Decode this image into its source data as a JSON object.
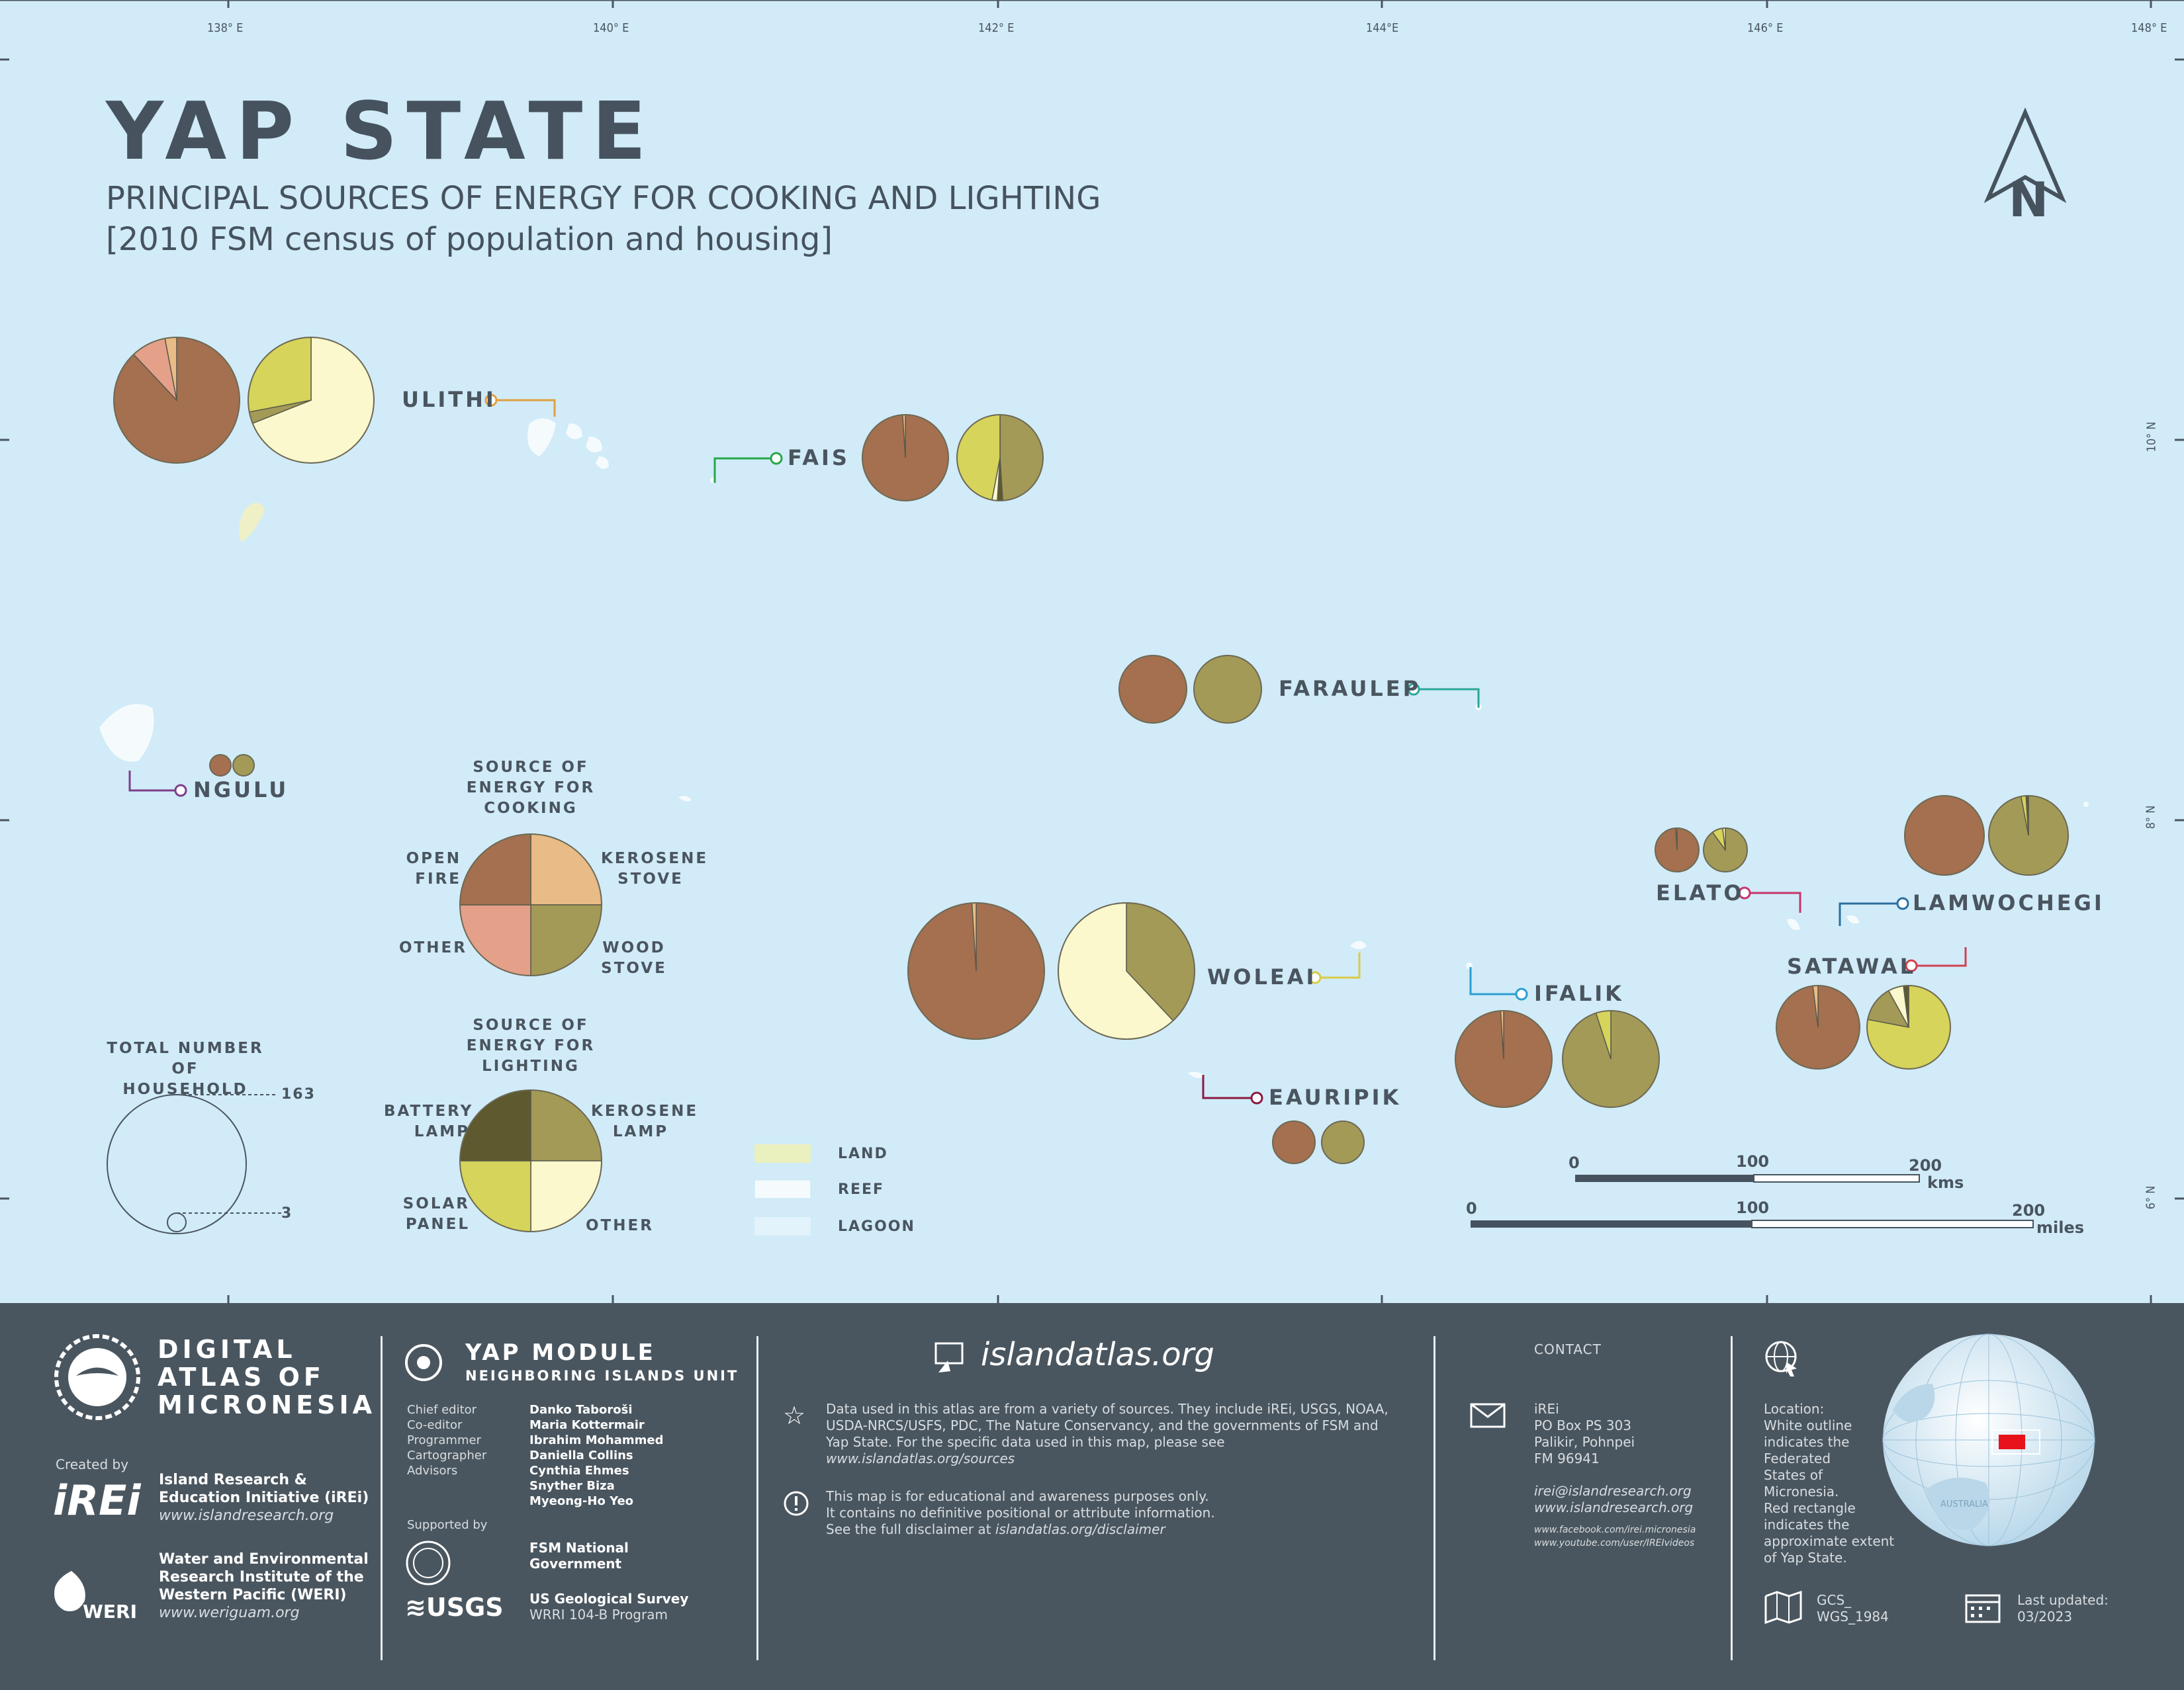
{
  "title": "YAP STATE",
  "subtitle": "PRINCIPAL SOURCES OF ENERGY FOR COOKING AND LIGHTING",
  "subtitle2": "[2010 FSM census of population and housing]",
  "north_label": "N",
  "longitudes": [
    "138° E",
    "140° E",
    "142° E",
    "144°E",
    "146° E",
    "148° E"
  ],
  "latitudes": [
    "10° N",
    "8° N",
    "6° N"
  ],
  "islands": {
    "ulithi": "ULITHI",
    "fais": "FAIS",
    "faraulep": "FARAULEP",
    "ngulu": "NGULU",
    "elato": "ELATO",
    "lamwochegi": "LAMWOCHEGI",
    "satawal": "SATAWAL",
    "woleai": "WOLEAI",
    "ifalik": "IFALIK",
    "eauripik": "EAURIPIK"
  },
  "legend": {
    "cooking_title": "SOURCE OF ENERGY FOR COOKING",
    "cooking_items": {
      "open_fire": "OPEN FIRE",
      "kerosene_stove": "KEROSENE STOVE",
      "other": "OTHER",
      "wood_stove": "WOOD STOVE"
    },
    "lighting_title": "SOURCE OF ENERGY FOR LIGHTING",
    "lighting_items": {
      "battery_lamp": "BATTERY LAMP",
      "kerosene_lamp": "KEROSENE LAMP",
      "solar_panel": "SOLAR PANEL",
      "other": "OTHER"
    },
    "household_title": "TOTAL NUMBER OF HOUSEHOLD",
    "household_max": "163",
    "household_min": "3",
    "land": "LAND",
    "reef": "REEF",
    "lagoon": "LAGOON"
  },
  "scale": {
    "km": {
      "zero": "0",
      "mid": "100",
      "max": "200",
      "unit": "kms"
    },
    "mi": {
      "zero": "0",
      "mid": "100",
      "max": "200",
      "unit": "miles"
    }
  },
  "colors": {
    "open_fire": "#a47050",
    "kerosene_stove": "#e8bb87",
    "other_cooking": "#e5a08a",
    "wood_stove": "#a39a58",
    "battery_lamp": "#5e592e",
    "kerosene_lamp": "#a39a58",
    "solar_panel": "#d6d45a",
    "other_lighting": "#fbf8cd",
    "ocean": "#d1ebf8",
    "footer": "#4a565f"
  },
  "chart_data": [
    {
      "type": "pie",
      "island": "ULITHI",
      "households": "approx 163",
      "cooking": {
        "open_fire": 88,
        "other": 9,
        "kerosene_stove": 3
      },
      "lighting": {
        "other": 69,
        "kerosene_lamp": 3,
        "solar_panel": 28
      }
    },
    {
      "type": "pie",
      "island": "FAIS",
      "cooking": {
        "open_fire": 99,
        "kerosene_stove": 1
      },
      "lighting": {
        "kerosene_lamp": 49,
        "battery_lamp": 2,
        "other": 2,
        "solar_panel": 47
      }
    },
    {
      "type": "pie",
      "island": "FARAULEP",
      "cooking": {
        "open_fire": 100
      },
      "lighting": {
        "kerosene_lamp": 100
      }
    },
    {
      "type": "pie",
      "island": "NGULU",
      "cooking": {
        "open_fire": 100
      },
      "lighting": {
        "kerosene_lamp": 100
      }
    },
    {
      "type": "pie",
      "island": "WOLEAI",
      "cooking": {
        "open_fire": 99,
        "kerosene_stove": 1
      },
      "lighting": {
        "kerosene_lamp": 38,
        "other": 62
      }
    },
    {
      "type": "pie",
      "island": "ELATO",
      "cooking": {
        "open_fire": 99,
        "other": 1
      },
      "lighting": {
        "kerosene_lamp": 90,
        "solar_panel": 8,
        "other": 2
      }
    },
    {
      "type": "pie",
      "island": "LAMWOCHEGI",
      "cooking": {
        "open_fire": 100
      },
      "lighting": {
        "kerosene_lamp": 97,
        "solar_panel": 2,
        "battery_lamp": 1
      }
    },
    {
      "type": "pie",
      "island": "IFALIK",
      "cooking": {
        "open_fire": 99,
        "kerosene_stove": 1
      },
      "lighting": {
        "kerosene_lamp": 95,
        "solar_panel": 5
      }
    },
    {
      "type": "pie",
      "island": "SATAWAL",
      "cooking": {
        "open_fire": 98,
        "kerosene_stove": 2
      },
      "lighting": {
        "solar_panel": 78,
        "kerosene_lamp": 14,
        "other": 6,
        "battery_lamp": 2
      }
    },
    {
      "type": "pie",
      "island": "EAURIPIK",
      "cooking": {
        "open_fire": 100
      },
      "lighting": {
        "kerosene_lamp": 100
      }
    }
  ],
  "footer": {
    "brand_line1": "DIGITAL",
    "brand_line2": "ATLAS OF",
    "brand_line3": "MICRONESIA",
    "created_by": "Created by",
    "irei_logo": "iREi",
    "irei_name1": "Island Research &",
    "irei_name2": "Education Initiative (iREi)",
    "irei_url": "www.islandresearch.org",
    "weri_logo": "WERI",
    "weri_name1": "Water and Environmental",
    "weri_name2": "Research Institute of the",
    "weri_name3": "Western Pacific (WERI)",
    "weri_url": "www.weriguam.org",
    "module_title": "YAP MODULE",
    "module_sub": "NEIGHBORING ISLANDS UNIT",
    "roles": [
      "Chief editor",
      "Co-editor",
      "Programmer",
      "Cartographer",
      "Advisors"
    ],
    "names": [
      "Danko Taboroši",
      "Maria Kottermair",
      "Ibrahim Mohammed",
      "Daniella Collins",
      "Cynthia Ehmes",
      "Snyther Biza",
      "Myeong-Ho Yeo"
    ],
    "supported_by": "Supported by",
    "fsm_gov1": "FSM National",
    "fsm_gov2": "Government",
    "usgs_logo": "≋USGS",
    "usgs1": "US Geological Survey",
    "usgs2": "WRRI 104-B Program",
    "site": "islandatlas.org",
    "data_note1": "Data used in this atlas are from a variety of sources. They include iREi, USGS, NOAA,",
    "data_note2": "USDA-NRCS/USFS, PDC, The Nature Conservancy, and the governments of FSM and",
    "data_note3": "Yap State. For the specific data used in this map, please see",
    "data_note4": "www.islandatlas.org/sources",
    "disc1": "This map is for educational and awareness purposes only.",
    "disc2": "It contains no definitive positional or attribute information.",
    "disc3": "See the full disclaimer at",
    "disc4": "islandatlas.org/disclaimer",
    "contact": "CONTACT",
    "addr": [
      "iREi",
      "PO Box PS 303",
      "Palikir, Pohnpei",
      "FM 96941"
    ],
    "email": "irei@islandresearch.org",
    "web": "www.islandresearch.org",
    "fb": "www.facebook.com/irei.micronesia",
    "yt": "www.youtube.com/user/IREIvideos",
    "loc": [
      "Location:",
      "White outline",
      "indicates the",
      "Federated",
      "States of",
      "Micronesia.",
      "Red rectangle",
      "indicates the",
      "approximate extent",
      "of Yap State."
    ],
    "gcs1": "GCS_",
    "gcs2": "WGS_1984",
    "updated1": "Last updated:",
    "updated2": "03/2023",
    "globe_label": "AUSTRALIA"
  }
}
